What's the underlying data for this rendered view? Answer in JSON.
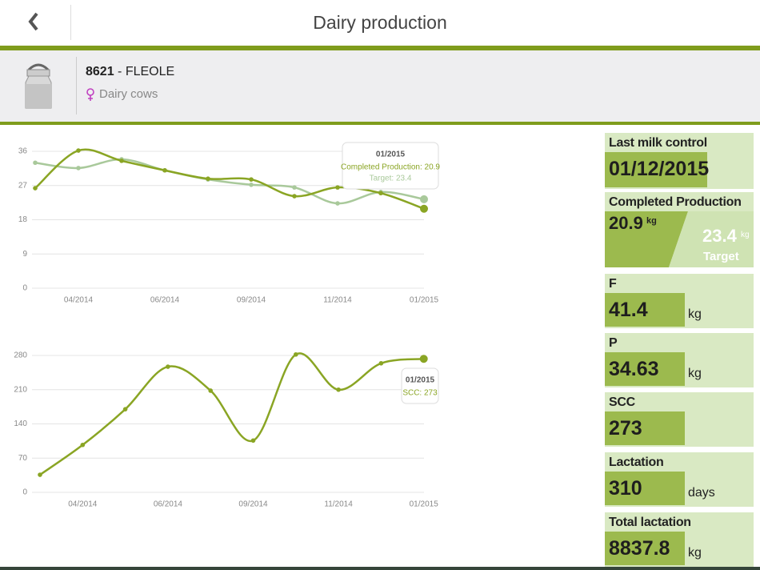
{
  "header": {
    "title": "Dairy production"
  },
  "animal": {
    "id": "8621",
    "name": "- FLEOLE",
    "category": "Dairy cows"
  },
  "chart_data": [
    {
      "type": "line",
      "categories": [
        null,
        "04/2014",
        null,
        "06/2014",
        null,
        "09/2014",
        null,
        "11/2014",
        null,
        "01/2015"
      ],
      "series": [
        {
          "color": "#8aa524",
          "values": [
            26.3,
            36.2,
            33.5,
            31,
            28.8,
            28.6,
            24.2,
            26.5,
            25,
            20.9
          ]
        },
        {
          "color": "#a9c99b",
          "values": [
            33,
            31.6,
            33.9,
            31,
            28.6,
            27.2,
            26.5,
            22.3,
            25.3,
            23.4
          ]
        }
      ],
      "ylim": [
        0,
        36
      ],
      "yticks": [
        0,
        9,
        18,
        27,
        36
      ],
      "grid": true,
      "tooltip": {
        "title": "01/2015",
        "lines": [
          "Completed Production: 20.9",
          "Target: 23.4"
        ]
      }
    },
    {
      "type": "line",
      "categories": [
        null,
        "04/2014",
        null,
        "06/2014",
        null,
        "09/2014",
        null,
        "11/2014",
        null,
        "01/2015"
      ],
      "series": [
        {
          "color": "#8aa524",
          "values": [
            36,
            97,
            170,
            257,
            208,
            106,
            282,
            210,
            264,
            273
          ]
        }
      ],
      "ylim": [
        0,
        280
      ],
      "yticks": [
        0,
        70,
        140,
        210,
        280
      ],
      "grid": true,
      "tooltip": {
        "title": "01/2015",
        "lines": [
          "SCC: 273"
        ]
      }
    }
  ],
  "cards": [
    {
      "label": "Last milk control",
      "value": "01/12/2015"
    },
    {
      "label": "Completed Production",
      "value": 20.9,
      "unit": "kg",
      "target": 23.4,
      "target_unit": "kg",
      "target_label": "Target"
    },
    {
      "label": "F",
      "value": 41.4,
      "unit": "kg"
    },
    {
      "label": "P",
      "value": 34.63,
      "unit": "kg"
    },
    {
      "label": "SCC",
      "value": 273
    },
    {
      "label": "Lactation",
      "value": 310,
      "unit": "days"
    },
    {
      "label": "Total lactation",
      "value": 8837.8,
      "unit": "kg"
    }
  ]
}
